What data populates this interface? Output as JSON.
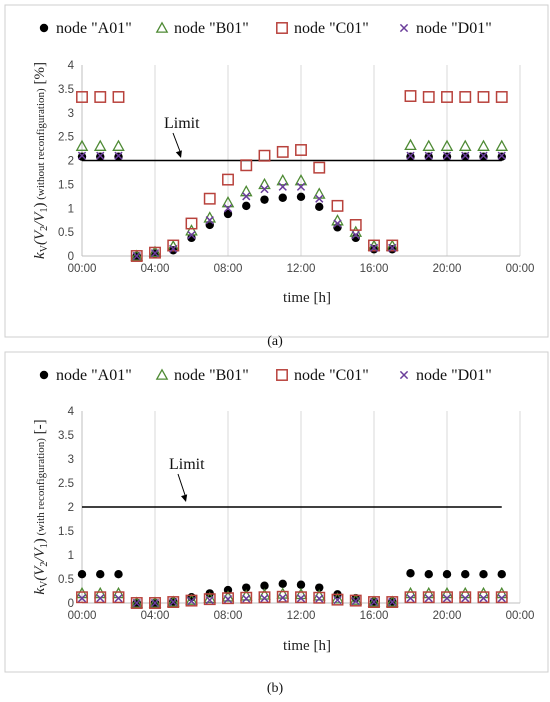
{
  "chart_data": [
    {
      "type": "scatter",
      "panel_label": "(a)",
      "xlabel": "time [h]",
      "ylabel": "kV(V2/V1) (without reconfiguration) [%]",
      "ylabel_main": "k",
      "ylabel_sub_v": "V",
      "ylabel_func": "(V",
      "ylabel_sub_2": "2",
      "ylabel_mid": "/V",
      "ylabel_sub_1": "1",
      "ylabel_close": ")",
      "ylabel_note": " (without reconfiguration)",
      "ylabel_unit": " [%]",
      "xlim": [
        0,
        24
      ],
      "ylim": [
        0,
        4
      ],
      "x_ticks": [
        "00:00",
        "04:00",
        "08:00",
        "12:00",
        "16:00",
        "20:00",
        "00:00"
      ],
      "y_ticks": [
        "0",
        "0.5",
        "1",
        "1.5",
        "2",
        "2.5",
        "3",
        "3.5",
        "4"
      ],
      "grid": "vertical",
      "limit": {
        "label": "Limit",
        "value": 2
      },
      "x": [
        0,
        1,
        2,
        3,
        4,
        5,
        6,
        7,
        8,
        9,
        10,
        11,
        12,
        13,
        14,
        15,
        16,
        17,
        18,
        19,
        20,
        21,
        22,
        23
      ],
      "series": [
        {
          "name": "node \"A01\"",
          "marker": "circle",
          "color": "#000000",
          "values": [
            2.08,
            2.08,
            2.08,
            0,
            0.05,
            0.12,
            0.38,
            0.65,
            0.88,
            1.05,
            1.18,
            1.22,
            1.24,
            1.03,
            0.6,
            0.38,
            0.14,
            0.14,
            2.08,
            2.08,
            2.08,
            2.08,
            2.08,
            2.08
          ]
        },
        {
          "name": "node \"B01\"",
          "marker": "triangle",
          "color": "#4e8a34",
          "values": [
            2.3,
            2.3,
            2.3,
            0,
            0.08,
            0.2,
            0.53,
            0.8,
            1.12,
            1.35,
            1.5,
            1.58,
            1.58,
            1.3,
            0.74,
            0.5,
            0.21,
            0.21,
            2.32,
            2.3,
            2.3,
            2.3,
            2.3,
            2.3
          ]
        },
        {
          "name": "node \"C01\"",
          "marker": "square",
          "color": "#b8423c",
          "values": [
            3.33,
            3.33,
            3.33,
            0,
            0.07,
            0.22,
            0.68,
            1.2,
            1.6,
            1.9,
            2.1,
            2.18,
            2.22,
            1.85,
            1.05,
            0.65,
            0.22,
            0.22,
            3.35,
            3.33,
            3.33,
            3.33,
            3.33,
            3.33
          ]
        },
        {
          "name": "node \"D01\"",
          "marker": "x",
          "color": "#6a3d9a",
          "values": [
            2.1,
            2.1,
            2.1,
            0,
            0.06,
            0.15,
            0.44,
            0.75,
            1.0,
            1.25,
            1.4,
            1.45,
            1.45,
            1.2,
            0.68,
            0.44,
            0.17,
            0.17,
            2.1,
            2.1,
            2.1,
            2.1,
            2.1,
            2.1
          ]
        }
      ]
    },
    {
      "type": "scatter",
      "panel_label": "(b)",
      "xlabel": "time [h]",
      "ylabel": "kV(V2/V1) (with reconfiguration) [-]",
      "ylabel_main": "k",
      "ylabel_sub_v": "V",
      "ylabel_func": "(V",
      "ylabel_sub_2": "2",
      "ylabel_mid": "/V",
      "ylabel_sub_1": "1",
      "ylabel_close": ")",
      "ylabel_note": " (with reconfiguration)",
      "ylabel_unit": " [-]",
      "xlim": [
        0,
        24
      ],
      "ylim": [
        0,
        4
      ],
      "x_ticks": [
        "00:00",
        "04:00",
        "08:00",
        "12:00",
        "16:00",
        "20:00",
        "00:00"
      ],
      "y_ticks": [
        "0",
        "0.5",
        "1",
        "1.5",
        "2",
        "2.5",
        "3",
        "3.5",
        "4"
      ],
      "grid": "vertical",
      "limit": {
        "label": "Limit",
        "value": 2
      },
      "x": [
        0,
        1,
        2,
        3,
        4,
        5,
        6,
        7,
        8,
        9,
        10,
        11,
        12,
        13,
        14,
        15,
        16,
        17,
        18,
        19,
        20,
        21,
        22,
        23
      ],
      "series": [
        {
          "name": "node \"A01\"",
          "marker": "circle",
          "color": "#000000",
          "values": [
            0.6,
            0.6,
            0.6,
            0,
            0,
            0.03,
            0.12,
            0.2,
            0.27,
            0.32,
            0.36,
            0.4,
            0.38,
            0.32,
            0.18,
            0.1,
            0.03,
            0.03,
            0.62,
            0.6,
            0.6,
            0.6,
            0.6,
            0.6
          ]
        },
        {
          "name": "node \"B01\"",
          "marker": "triangle",
          "color": "#4e8a34",
          "values": [
            0.2,
            0.2,
            0.2,
            0,
            0,
            0.02,
            0.06,
            0.1,
            0.13,
            0.15,
            0.17,
            0.19,
            0.18,
            0.15,
            0.09,
            0.06,
            0.02,
            0.02,
            0.2,
            0.2,
            0.2,
            0.2,
            0.2,
            0.2
          ]
        },
        {
          "name": "node \"C01\"",
          "marker": "square",
          "color": "#b8423c",
          "values": [
            0.12,
            0.12,
            0.12,
            0,
            0,
            0.02,
            0.05,
            0.08,
            0.1,
            0.11,
            0.12,
            0.13,
            0.12,
            0.11,
            0.07,
            0.05,
            0.02,
            0.02,
            0.12,
            0.12,
            0.12,
            0.12,
            0.12,
            0.12
          ]
        },
        {
          "name": "node \"D01\"",
          "marker": "x",
          "color": "#6a3d9a",
          "values": [
            0.1,
            0.1,
            0.1,
            0,
            0,
            0.02,
            0.04,
            0.06,
            0.08,
            0.09,
            0.1,
            0.11,
            0.1,
            0.09,
            0.06,
            0.04,
            0.02,
            0.02,
            0.1,
            0.1,
            0.1,
            0.1,
            0.1,
            0.1
          ]
        }
      ]
    }
  ]
}
